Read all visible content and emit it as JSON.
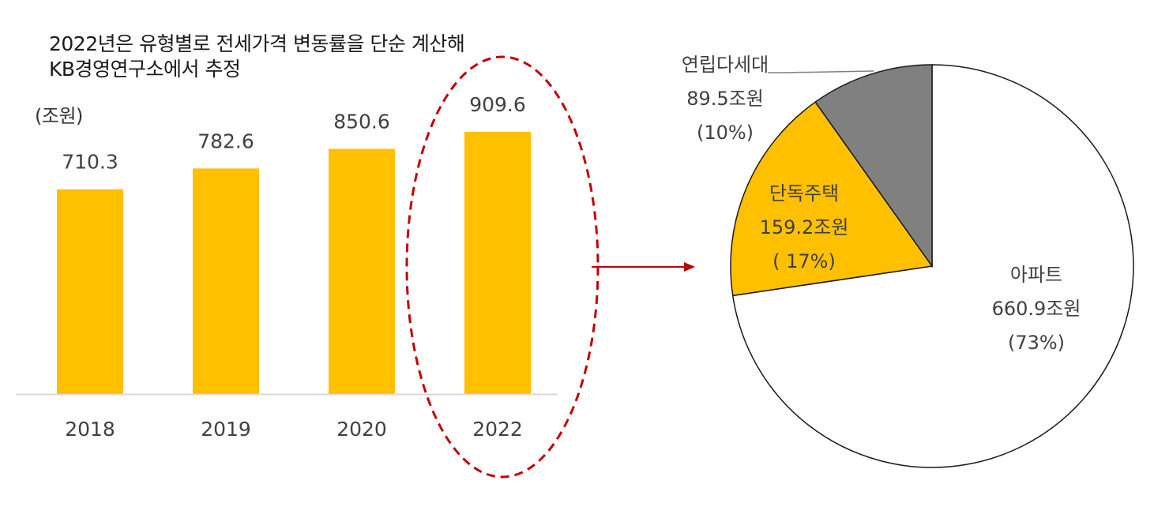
{
  "note": {
    "line1": "2022년은 유형별로 전세가격 변동률을 단순 계산해",
    "line2": "KB경영연구소에서 추정"
  },
  "colors": {
    "bar": "#FFC000",
    "apartment": "#FFFFFF",
    "detached": "#FFC000",
    "multiplex": "#808080",
    "highlight": "#C00000",
    "axis": "#D9D9D9"
  },
  "chart_data": [
    {
      "type": "bar",
      "unit_label": "(조원)",
      "categories": [
        "2018",
        "2019",
        "2020",
        "2022"
      ],
      "values": [
        710.3,
        782.6,
        850.6,
        909.6
      ],
      "value_labels": [
        "710.3",
        "782.6",
        "850.6",
        "909.6"
      ],
      "ylim": [
        0,
        1000
      ],
      "highlight_category": "2022",
      "grid": false
    },
    {
      "type": "pie",
      "slices": [
        {
          "name": "아파트",
          "value": 660.9,
          "amount_label": "660.9조원",
          "pct_label": "(73%)",
          "color": "#FFFFFF"
        },
        {
          "name": "단독주택",
          "value": 159.2,
          "amount_label": "159.2조원",
          "pct_label": "( 17%)",
          "color": "#FFC000"
        },
        {
          "name": "연립다세대",
          "value": 89.5,
          "amount_label": "89.5조원",
          "pct_label": "(10%)",
          "color": "#808080"
        }
      ]
    }
  ]
}
